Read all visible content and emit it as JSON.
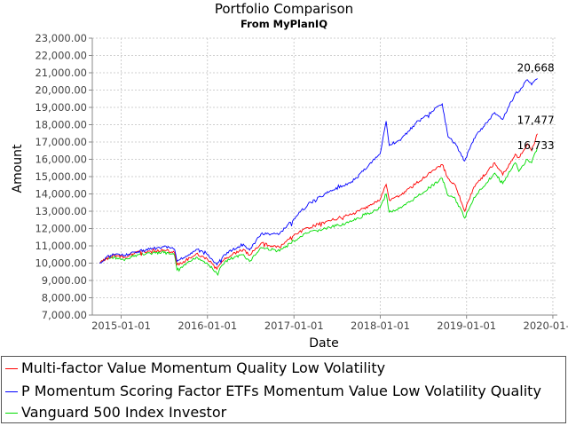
{
  "chart_data": {
    "type": "line",
    "title": "Portfolio Comparison",
    "subtitle": "From MyPlanIQ",
    "xlabel": "Date",
    "ylabel": "Amount",
    "ylim": [
      7000,
      23000
    ],
    "xlim": [
      "2014-09-01",
      "2020-01-20"
    ],
    "yticks": [
      "7,000.00",
      "8,000.00",
      "9,000.00",
      "10,000.00",
      "11,000.00",
      "12,000.00",
      "13,000.00",
      "14,000.00",
      "15,000.00",
      "16,000.00",
      "17,000.00",
      "18,000.00",
      "19,000.00",
      "20,000.00",
      "21,000.00",
      "22,000.00",
      "23,000.00"
    ],
    "xticks": [
      "2015-01-01",
      "2016-01-01",
      "2017-01-01",
      "2018-01-01",
      "2019-01-01",
      "2020-01-01"
    ],
    "grid": true,
    "legend_position": "bottom",
    "series": [
      {
        "name": "Multi-factor Value Momentum Quality Low Volatility",
        "color": "#ff0000",
        "end_label": "17,477",
        "points": [
          [
            "2014-10-01",
            10000
          ],
          [
            "2014-11-01",
            10300
          ],
          [
            "2014-12-01",
            10450
          ],
          [
            "2015-01-15",
            10350
          ],
          [
            "2015-03-01",
            10600
          ],
          [
            "2015-05-01",
            10700
          ],
          [
            "2015-07-01",
            10750
          ],
          [
            "2015-08-15",
            10600
          ],
          [
            "2015-08-25",
            9900
          ],
          [
            "2015-10-01",
            10150
          ],
          [
            "2015-11-15",
            10550
          ],
          [
            "2015-12-31",
            10250
          ],
          [
            "2016-02-10",
            9650
          ],
          [
            "2016-03-15",
            10300
          ],
          [
            "2016-06-01",
            10800
          ],
          [
            "2016-06-27",
            10450
          ],
          [
            "2016-08-15",
            11150
          ],
          [
            "2016-11-01",
            10900
          ],
          [
            "2016-12-31",
            11600
          ],
          [
            "2017-03-01",
            12050
          ],
          [
            "2017-06-01",
            12450
          ],
          [
            "2017-09-01",
            12800
          ],
          [
            "2017-12-31",
            13650
          ],
          [
            "2018-01-26",
            14550
          ],
          [
            "2018-02-08",
            13650
          ],
          [
            "2018-04-01",
            13950
          ],
          [
            "2018-06-01",
            14600
          ],
          [
            "2018-09-20",
            15700
          ],
          [
            "2018-10-15",
            14900
          ],
          [
            "2018-11-15",
            14500
          ],
          [
            "2018-12-24",
            13000
          ],
          [
            "2019-02-01",
            14400
          ],
          [
            "2019-04-30",
            15800
          ],
          [
            "2019-06-03",
            15100
          ],
          [
            "2019-07-26",
            16300
          ],
          [
            "2019-08-10",
            16100
          ],
          [
            "2019-09-15",
            16900
          ],
          [
            "2019-10-03",
            16500
          ],
          [
            "2019-10-28",
            17477
          ]
        ]
      },
      {
        "name": "P Momentum Scoring Factor ETFs Momentum Value Low Volatility Quality",
        "color": "#0000ff",
        "end_label": "20,668",
        "points": [
          [
            "2014-10-01",
            10000
          ],
          [
            "2014-11-01",
            10350
          ],
          [
            "2014-12-01",
            10500
          ],
          [
            "2015-01-15",
            10450
          ],
          [
            "2015-03-01",
            10650
          ],
          [
            "2015-05-01",
            10800
          ],
          [
            "2015-07-01",
            10950
          ],
          [
            "2015-08-15",
            10800
          ],
          [
            "2015-08-25",
            10100
          ],
          [
            "2015-10-01",
            10400
          ],
          [
            "2015-11-15",
            10800
          ],
          [
            "2015-12-31",
            10500
          ],
          [
            "2016-02-10",
            9900
          ],
          [
            "2016-03-15",
            10500
          ],
          [
            "2016-06-01",
            11100
          ],
          [
            "2016-06-27",
            10750
          ],
          [
            "2016-08-15",
            11700
          ],
          [
            "2016-11-01",
            11700
          ],
          [
            "2016-12-31",
            12550
          ],
          [
            "2017-03-01",
            13400
          ],
          [
            "2017-06-01",
            14150
          ],
          [
            "2017-09-01",
            14700
          ],
          [
            "2017-12-31",
            16300
          ],
          [
            "2018-01-26",
            18200
          ],
          [
            "2018-02-08",
            16800
          ],
          [
            "2018-04-01",
            17200
          ],
          [
            "2018-06-01",
            18100
          ],
          [
            "2018-09-20",
            19200
          ],
          [
            "2018-10-15",
            17300
          ],
          [
            "2018-11-15",
            16900
          ],
          [
            "2018-12-24",
            15900
          ],
          [
            "2019-02-01",
            17200
          ],
          [
            "2019-04-30",
            18700
          ],
          [
            "2019-06-03",
            18300
          ],
          [
            "2019-07-26",
            19800
          ],
          [
            "2019-08-10",
            19900
          ],
          [
            "2019-09-15",
            20600
          ],
          [
            "2019-10-03",
            20300
          ],
          [
            "2019-10-28",
            20668
          ]
        ]
      },
      {
        "name": "Vanguard 500 Index Investor",
        "color": "#00dd00",
        "end_label": "16,733",
        "points": [
          [
            "2014-10-01",
            10000
          ],
          [
            "2014-11-01",
            10250
          ],
          [
            "2014-12-01",
            10350
          ],
          [
            "2015-01-15",
            10150
          ],
          [
            "2015-03-01",
            10450
          ],
          [
            "2015-05-01",
            10600
          ],
          [
            "2015-07-01",
            10600
          ],
          [
            "2015-08-15",
            10450
          ],
          [
            "2015-08-25",
            9600
          ],
          [
            "2015-10-01",
            9900
          ],
          [
            "2015-11-15",
            10350
          ],
          [
            "2015-12-31",
            10000
          ],
          [
            "2016-02-10",
            9400
          ],
          [
            "2016-03-15",
            10100
          ],
          [
            "2016-06-01",
            10500
          ],
          [
            "2016-06-27",
            10100
          ],
          [
            "2016-08-15",
            10900
          ],
          [
            "2016-11-01",
            10700
          ],
          [
            "2016-12-31",
            11300
          ],
          [
            "2017-03-01",
            11750
          ],
          [
            "2017-06-01",
            12050
          ],
          [
            "2017-09-01",
            12400
          ],
          [
            "2017-12-31",
            13200
          ],
          [
            "2018-01-26",
            14000
          ],
          [
            "2018-02-08",
            12950
          ],
          [
            "2018-04-01",
            13200
          ],
          [
            "2018-06-01",
            13800
          ],
          [
            "2018-09-20",
            14900
          ],
          [
            "2018-10-15",
            13900
          ],
          [
            "2018-11-15",
            13700
          ],
          [
            "2018-12-24",
            12600
          ],
          [
            "2019-02-01",
            13800
          ],
          [
            "2019-04-30",
            15200
          ],
          [
            "2019-06-03",
            14600
          ],
          [
            "2019-07-26",
            15800
          ],
          [
            "2019-08-10",
            15300
          ],
          [
            "2019-09-15",
            16000
          ],
          [
            "2019-10-03",
            15800
          ],
          [
            "2019-10-28",
            16733
          ]
        ]
      }
    ]
  }
}
